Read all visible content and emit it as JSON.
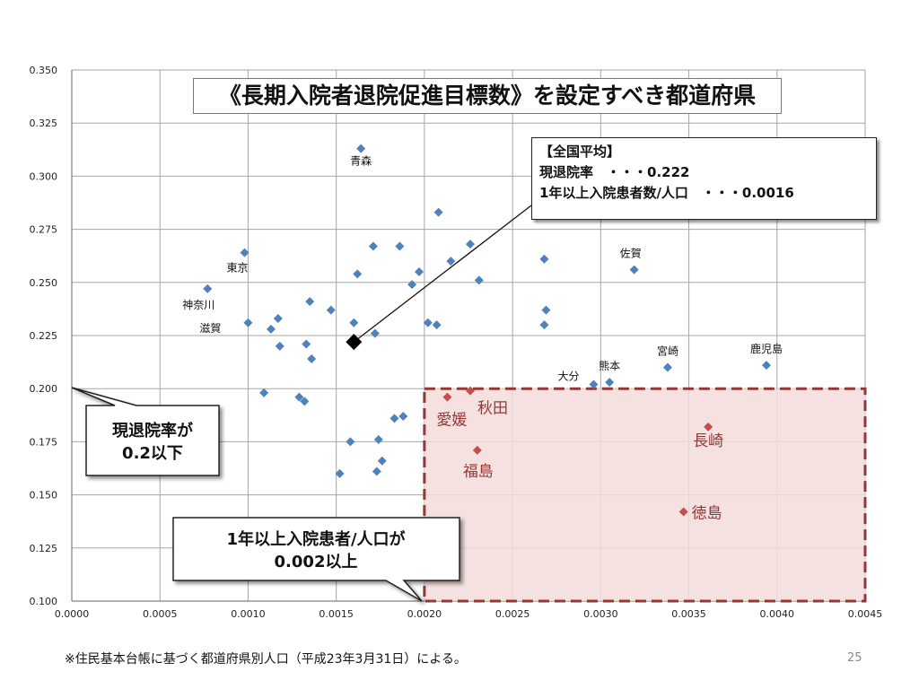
{
  "chart_data": {
    "type": "scatter",
    "title": "《長期入院者退院促進目標数》を設定すべき都道府県",
    "xlim": [
      0,
      0.0045
    ],
    "ylim": [
      0.1,
      0.35
    ],
    "x_ticks": [
      "0.0000",
      "0.0005",
      "0.0010",
      "0.0015",
      "0.0020",
      "0.0025",
      "0.0030",
      "0.0035",
      "0.0040",
      "0.0045"
    ],
    "y_ticks": [
      "0.100",
      "0.125",
      "0.150",
      "0.175",
      "0.200",
      "0.225",
      "0.250",
      "0.275",
      "0.300",
      "0.325",
      "0.350"
    ],
    "grid": true,
    "series": [
      {
        "color": "#4f81bd",
        "points": [
          {
            "x": 0.00164,
            "y": 0.313,
            "label": "青森"
          },
          {
            "x": 0.00098,
            "y": 0.264,
            "label": "東京"
          },
          {
            "x": 0.00077,
            "y": 0.247,
            "label": "神奈川"
          },
          {
            "x": 0.001,
            "y": 0.231,
            "label": "滋賀"
          },
          {
            "x": 0.00319,
            "y": 0.256,
            "label": "佐賀"
          },
          {
            "x": 0.00394,
            "y": 0.211,
            "label": "鹿児島"
          },
          {
            "x": 0.00338,
            "y": 0.21,
            "label": "宮崎"
          },
          {
            "x": 0.00305,
            "y": 0.203,
            "label": "熊本"
          },
          {
            "x": 0.00296,
            "y": 0.202,
            "label": "大分"
          },
          {
            "x": 0.00208,
            "y": 0.283
          },
          {
            "x": 0.00171,
            "y": 0.267
          },
          {
            "x": 0.00186,
            "y": 0.267
          },
          {
            "x": 0.00226,
            "y": 0.268
          },
          {
            "x": 0.00268,
            "y": 0.261
          },
          {
            "x": 0.00215,
            "y": 0.26
          },
          {
            "x": 0.00162,
            "y": 0.254
          },
          {
            "x": 0.00197,
            "y": 0.255
          },
          {
            "x": 0.00231,
            "y": 0.251
          },
          {
            "x": 0.00193,
            "y": 0.249
          },
          {
            "x": 0.00135,
            "y": 0.241
          },
          {
            "x": 0.00147,
            "y": 0.237
          },
          {
            "x": 0.00269,
            "y": 0.237
          },
          {
            "x": 0.00117,
            "y": 0.233
          },
          {
            "x": 0.0016,
            "y": 0.231
          },
          {
            "x": 0.00202,
            "y": 0.231
          },
          {
            "x": 0.00207,
            "y": 0.23
          },
          {
            "x": 0.00268,
            "y": 0.23
          },
          {
            "x": 0.00113,
            "y": 0.228
          },
          {
            "x": 0.00172,
            "y": 0.226
          },
          {
            "x": 0.00118,
            "y": 0.22
          },
          {
            "x": 0.00133,
            "y": 0.221
          },
          {
            "x": 0.00136,
            "y": 0.214
          },
          {
            "x": 0.00109,
            "y": 0.198
          },
          {
            "x": 0.00129,
            "y": 0.196
          },
          {
            "x": 0.00132,
            "y": 0.194
          },
          {
            "x": 0.00183,
            "y": 0.186
          },
          {
            "x": 0.00188,
            "y": 0.187
          },
          {
            "x": 0.00158,
            "y": 0.175
          },
          {
            "x": 0.00174,
            "y": 0.176
          },
          {
            "x": 0.00176,
            "y": 0.166
          },
          {
            "x": 0.00152,
            "y": 0.16
          },
          {
            "x": 0.00173,
            "y": 0.161
          }
        ]
      },
      {
        "color": "#c0504d",
        "points": [
          {
            "x": 0.00213,
            "y": 0.196,
            "label": "愛媛"
          },
          {
            "x": 0.00226,
            "y": 0.199,
            "label": "秋田"
          },
          {
            "x": 0.0023,
            "y": 0.171,
            "label": "福島"
          },
          {
            "x": 0.00361,
            "y": 0.182,
            "label": "長崎"
          },
          {
            "x": 0.00347,
            "y": 0.142,
            "label": "徳島"
          }
        ]
      }
    ],
    "average_point": {
      "x": 0.0016,
      "y": 0.222
    },
    "threshold_region": {
      "x_min": 0.002,
      "x_max": 0.0045,
      "y_min": 0.1,
      "y_max": 0.2
    }
  },
  "avg_box": {
    "heading": "【全国平均】",
    "line1": "現退院率　・・・0.222",
    "line2": "1年以上入院患者数/人口　・・・0.0016"
  },
  "callout_left": {
    "line1": "現退院率が",
    "line2": "0.2以下"
  },
  "callout_bottom": {
    "line1": "1年以上入院患者/人口が",
    "line2": "0.002以上"
  },
  "footnote": "※住民基本台帳に基づく都道府県別人口（平成23年3月31日）による。",
  "page_number": "25"
}
